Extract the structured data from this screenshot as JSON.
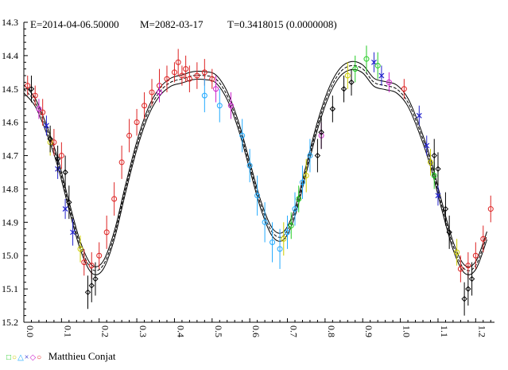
{
  "header": {
    "epoch": "E=2014-04-06.50000",
    "max": "M=2082-03-17",
    "period": "T=0.3418015 (0.0000008)"
  },
  "footer": {
    "symbols": [
      "□",
      "○",
      "△",
      "×",
      "◇",
      "○"
    ],
    "observer": "Matthieu Conjat"
  },
  "colors": {
    "series": [
      "#22cc22",
      "#cccc00",
      "#22aaff",
      "#2222cc",
      "#cc22cc",
      "#dd2222",
      "#000000"
    ],
    "model": "#000000"
  },
  "chart_data": {
    "type": "scatter",
    "title": "",
    "xlabel": "",
    "ylabel": "",
    "xlim": [
      0.0,
      1.25
    ],
    "ylim": [
      15.2,
      14.3
    ],
    "y_inverted": true,
    "grid": false,
    "x_ticks": [
      "0.0",
      "0.1",
      "0.2",
      "0.3",
      "0.4",
      "0.5",
      "0.6",
      "0.7",
      "0.8",
      "0.9",
      "1.0",
      "1.1",
      "1.2"
    ],
    "y_ticks": [
      "14.3",
      "14.4",
      "14.5",
      "14.6",
      "14.7",
      "14.8",
      "14.9",
      "15.0",
      "15.1",
      "15.2"
    ],
    "model_curve": {
      "x": [
        0.0,
        0.03,
        0.06,
        0.09,
        0.12,
        0.15,
        0.18,
        0.21,
        0.24,
        0.27,
        0.3,
        0.33,
        0.36,
        0.39,
        0.42,
        0.45,
        0.48,
        0.51,
        0.54,
        0.57,
        0.6,
        0.63,
        0.66,
        0.69,
        0.72,
        0.75,
        0.78,
        0.81,
        0.84,
        0.87,
        0.9,
        0.93,
        0.96,
        0.99,
        1.02,
        1.05,
        1.08,
        1.11,
        1.14,
        1.17,
        1.2,
        1.23
      ],
      "y": [
        14.5,
        14.54,
        14.62,
        14.72,
        14.85,
        14.97,
        15.04,
        15.03,
        14.94,
        14.8,
        14.67,
        14.57,
        14.51,
        14.48,
        14.47,
        14.46,
        14.46,
        14.47,
        14.52,
        14.61,
        14.73,
        14.85,
        14.93,
        14.94,
        14.87,
        14.74,
        14.61,
        14.51,
        14.45,
        14.43,
        14.44,
        14.48,
        14.49,
        14.5,
        14.54,
        14.62,
        14.72,
        14.85,
        14.97,
        15.04,
        15.03,
        14.94
      ],
      "band_offset": 0.012
    },
    "series": [
      {
        "color": "#dd2222",
        "x": [
          0.01,
          0.03,
          0.05,
          0.08,
          0.1,
          0.16,
          0.18,
          0.2,
          0.22,
          0.24,
          0.26,
          0.28,
          0.3,
          0.32,
          0.34,
          0.36,
          0.38,
          0.4,
          0.41,
          0.42,
          0.43,
          0.44,
          0.46,
          0.48,
          0.5,
          1.01,
          1.16,
          1.18,
          1.2,
          1.22,
          1.24
        ],
        "y": [
          14.49,
          14.52,
          14.57,
          14.66,
          14.7,
          15.02,
          15.03,
          15.0,
          14.93,
          14.83,
          14.72,
          14.64,
          14.6,
          14.55,
          14.51,
          14.49,
          14.47,
          14.45,
          14.42,
          14.46,
          14.44,
          14.47,
          14.46,
          14.45,
          14.47,
          14.5,
          15.04,
          15.03,
          15.0,
          14.95,
          14.86
        ],
        "err": [
          0.03,
          0.03,
          0.04,
          0.04,
          0.04,
          0.04,
          0.04,
          0.04,
          0.05,
          0.05,
          0.05,
          0.05,
          0.04,
          0.04,
          0.04,
          0.05,
          0.04,
          0.03,
          0.04,
          0.03,
          0.04,
          0.04,
          0.04,
          0.04,
          0.03,
          0.03,
          0.04,
          0.04,
          0.04,
          0.04,
          0.04
        ]
      },
      {
        "color": "#2222cc",
        "x": [
          0.06,
          0.09,
          0.11,
          0.13,
          0.93,
          0.95,
          1.05,
          1.07,
          1.1
        ],
        "y": [
          14.61,
          14.74,
          14.86,
          14.93,
          14.42,
          14.46,
          14.58,
          14.67,
          14.82
        ],
        "err": [
          0.03,
          0.03,
          0.03,
          0.04,
          0.03,
          0.03,
          0.03,
          0.03,
          0.03
        ]
      },
      {
        "color": "#cc22cc",
        "x": [
          0.04,
          0.36,
          0.51,
          0.55,
          0.79,
          0.97
        ],
        "y": [
          14.56,
          14.51,
          14.5,
          14.55,
          14.64,
          14.48
        ],
        "err": [
          0.03,
          0.03,
          0.04,
          0.04,
          0.04,
          0.03
        ]
      },
      {
        "color": "#22aaff",
        "x": [
          0.48,
          0.52,
          0.58,
          0.6,
          0.62,
          0.64,
          0.66,
          0.68,
          0.7,
          0.72,
          0.74,
          0.76
        ],
        "y": [
          14.52,
          14.55,
          14.64,
          14.73,
          14.82,
          14.9,
          14.96,
          14.98,
          14.93,
          14.86,
          14.78,
          14.7
        ],
        "err": [
          0.05,
          0.05,
          0.05,
          0.05,
          0.06,
          0.06,
          0.06,
          0.06,
          0.05,
          0.05,
          0.05,
          0.05
        ]
      },
      {
        "color": "#22cc22",
        "x": [
          0.71,
          0.73,
          0.88,
          0.91,
          0.94,
          1.09
        ],
        "y": [
          14.91,
          14.83,
          14.44,
          14.41,
          14.43,
          14.76
        ],
        "err": [
          0.04,
          0.04,
          0.04,
          0.04,
          0.04,
          0.04
        ]
      },
      {
        "color": "#cccc00",
        "x": [
          0.07,
          0.15,
          0.69,
          0.75,
          0.86,
          1.08,
          1.15
        ],
        "y": [
          14.66,
          14.98,
          14.95,
          14.76,
          14.46,
          14.72,
          14.99
        ],
        "err": [
          0.04,
          0.04,
          0.05,
          0.05,
          0.04,
          0.04,
          0.04
        ]
      },
      {
        "color": "#000000",
        "x": [
          0.02,
          0.07,
          0.09,
          0.11,
          0.12,
          0.17,
          0.18,
          0.19,
          0.78,
          0.79,
          0.82,
          0.85,
          0.87,
          1.09,
          1.1,
          1.12,
          1.13,
          1.17,
          1.18,
          1.19
        ],
        "y": [
          14.5,
          14.65,
          14.71,
          14.75,
          14.84,
          15.11,
          15.09,
          15.07,
          14.7,
          14.63,
          14.56,
          14.5,
          14.48,
          14.7,
          14.74,
          14.86,
          14.93,
          15.13,
          15.1,
          15.07
        ],
        "err": [
          0.04,
          0.04,
          0.04,
          0.05,
          0.05,
          0.05,
          0.05,
          0.05,
          0.05,
          0.05,
          0.04,
          0.04,
          0.04,
          0.05,
          0.05,
          0.05,
          0.05,
          0.05,
          0.05,
          0.05
        ]
      }
    ]
  }
}
